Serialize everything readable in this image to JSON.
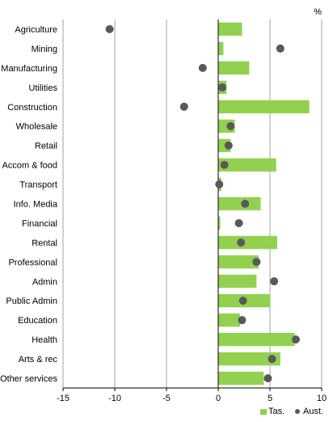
{
  "chart_data": {
    "type": "bar",
    "orientation": "horizontal",
    "title": "",
    "xlabel": "",
    "ylabel": "",
    "unit_label": "%",
    "xlim": [
      -15,
      10
    ],
    "xticks": [
      -15,
      -10,
      -5,
      0,
      5,
      10
    ],
    "grid": "vertical",
    "legend_position": "bottom-right",
    "categories": [
      "Agriculture",
      "Mining",
      "Manufacturing",
      "Utilities",
      "Construction",
      "Wholesale",
      "Retail",
      "Accom & food",
      "Transport",
      "Info. Media",
      "Financial",
      "Rental",
      "Professional",
      "Admin",
      "Public Admin",
      "Education",
      "Health",
      "Arts & rec",
      "Other services"
    ],
    "series": [
      {
        "name": "Tas.",
        "mark": "bar",
        "color": "#92d050",
        "values": [
          2.3,
          0.5,
          3.0,
          0.8,
          8.8,
          1.6,
          1.2,
          5.6,
          0.3,
          4.1,
          0.2,
          5.7,
          3.9,
          3.7,
          5.0,
          2.1,
          7.4,
          6.0,
          4.4
        ]
      },
      {
        "name": "Aust.",
        "mark": "dot",
        "color": "#595959",
        "values": [
          -10.5,
          6.0,
          -1.5,
          0.4,
          -3.3,
          1.2,
          1.0,
          0.6,
          0.1,
          2.6,
          2.0,
          2.2,
          3.7,
          5.4,
          2.4,
          2.3,
          7.5,
          5.2,
          4.8
        ]
      }
    ]
  }
}
